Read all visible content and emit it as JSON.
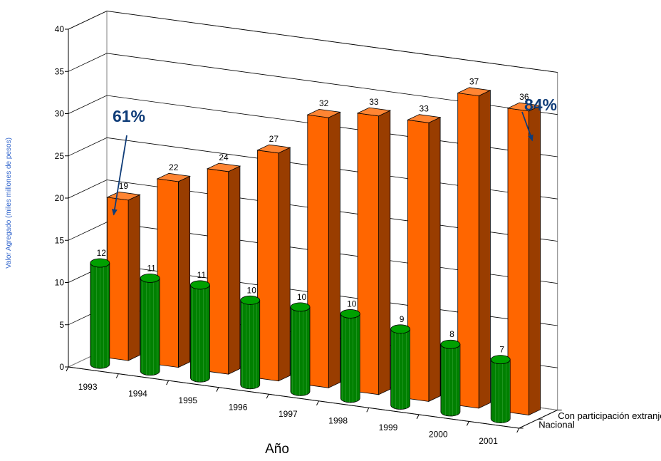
{
  "chart_data": {
    "type": "bar",
    "title": "",
    "xlabel": "Año",
    "ylabel": "Valor Agregado (miles millones de pesos)",
    "ylim": [
      0,
      40
    ],
    "yticks": [
      0,
      5,
      10,
      15,
      20,
      25,
      30,
      35,
      40
    ],
    "grid": true,
    "categories": [
      "1993",
      "1994",
      "1995",
      "1996",
      "1997",
      "1998",
      "1999",
      "2000",
      "2001"
    ],
    "series": [
      {
        "name": "Con participación extranjera",
        "values": [
          19,
          22,
          24,
          27,
          32,
          33,
          33,
          37,
          36
        ],
        "labels": [
          "19",
          "22",
          "24",
          "27",
          "32",
          "33",
          "33",
          "37",
          "36"
        ],
        "color": "#ff6600",
        "shape": "box"
      },
      {
        "name": "Nacional",
        "values": [
          12,
          11,
          11,
          10,
          10,
          10,
          9,
          8,
          7
        ],
        "labels": [
          "12",
          "11",
          "11",
          "10",
          "10",
          "10",
          "9",
          "8",
          "7"
        ],
        "color": "#008000",
        "shape": "cylinder"
      }
    ],
    "annotations": [
      {
        "text": "61%",
        "color": "#0f3c78",
        "points_to": "1993"
      },
      {
        "text": "84%",
        "color": "#0f3c78",
        "points_to": "2001"
      }
    ]
  }
}
